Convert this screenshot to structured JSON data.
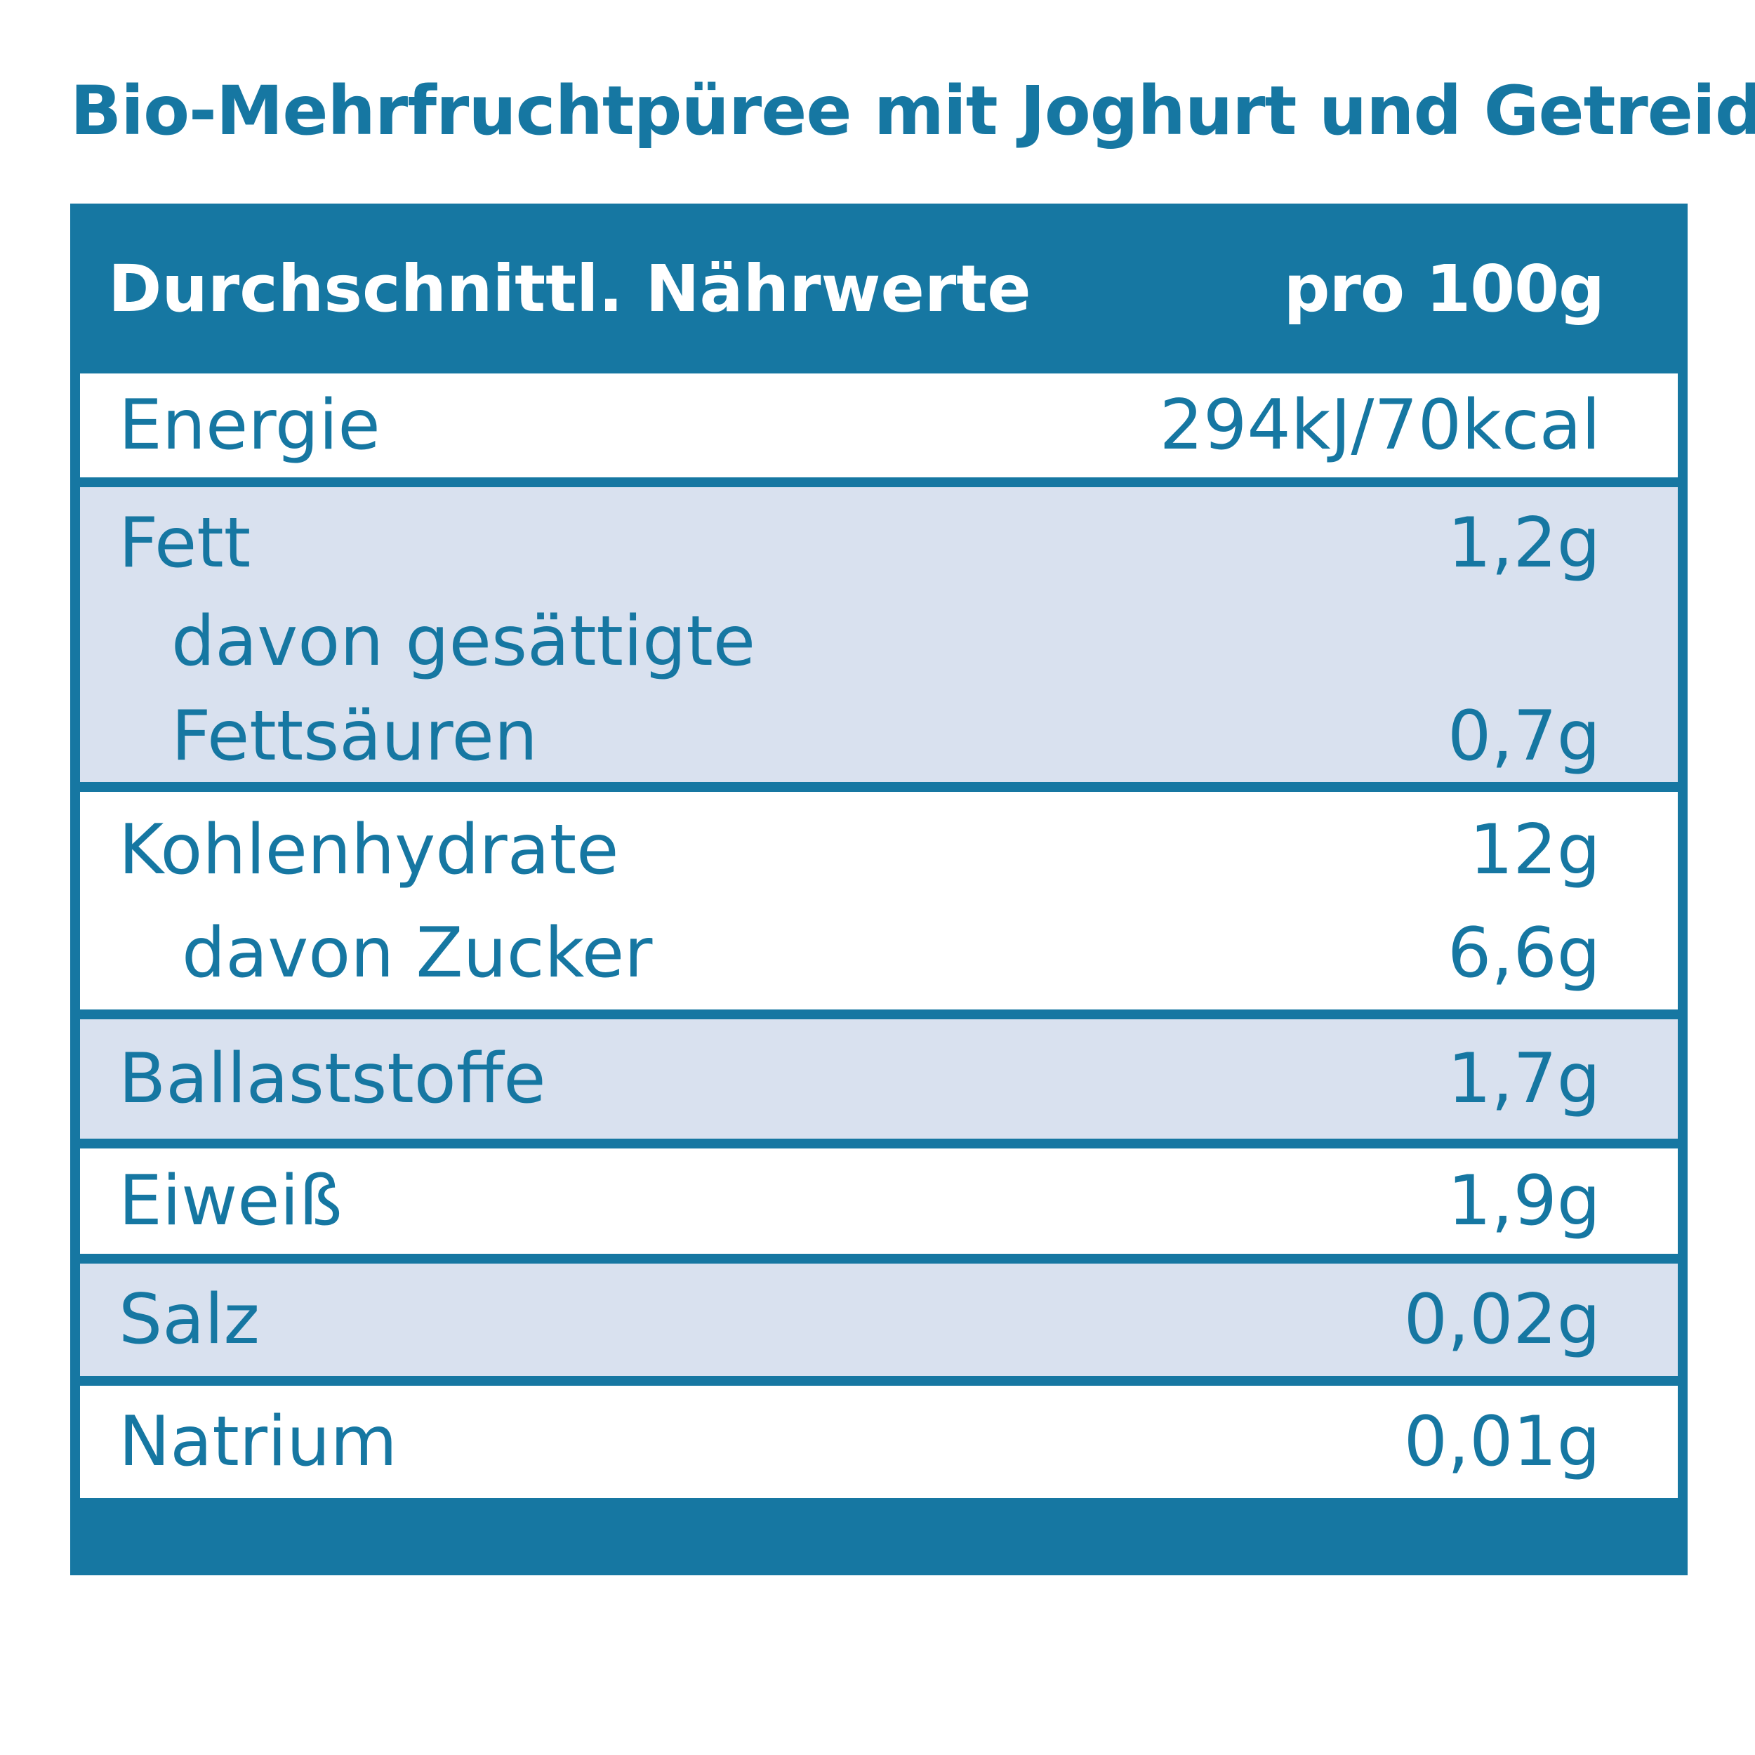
{
  "title": "Bio-Mehrfruchtpüree mit Joghurt und Getreide",
  "header": {
    "label": "Durchschnittl. Nährwerte",
    "per": "pro 100g"
  },
  "rows": {
    "energie": {
      "label": "Energie",
      "value": "294kJ/70kcal"
    },
    "fett": {
      "label": "Fett",
      "value": "1,2g"
    },
    "fett_sat_line1": {
      "label": "davon gesättigte"
    },
    "fett_sat_line2": {
      "label": "Fettsäuren",
      "value": "0,7g"
    },
    "kohlenhydrate": {
      "label": "Kohlenhydrate",
      "value": "12g"
    },
    "zucker": {
      "label": "davon Zucker",
      "value": "6,6g"
    },
    "ballaststoffe": {
      "label": "Ballaststoffe",
      "value": "1,7g"
    },
    "eiweiss": {
      "label": "Eiweiß",
      "value": "1,9g"
    },
    "salz": {
      "label": "Salz",
      "value": "0,02g"
    },
    "natrium": {
      "label": "Natrium",
      "value": "0,01g"
    }
  },
  "colors": {
    "primary": "#1677a2",
    "shade": "#d9e1ef",
    "background": "#ffffff"
  }
}
